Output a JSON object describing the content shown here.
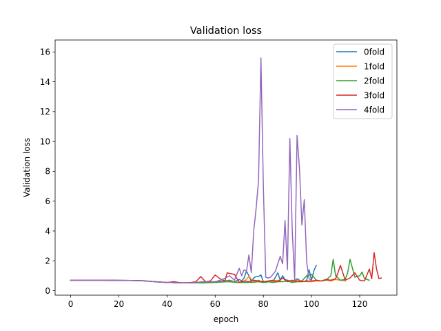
{
  "chart_data": {
    "type": "line",
    "title": "Validation loss",
    "xlabel": "epoch",
    "ylabel": "Validation loss",
    "xlim": [
      -6.45,
      135.45
    ],
    "ylim": [
      -0.3,
      16.8
    ],
    "xticks": [
      0,
      20,
      40,
      60,
      80,
      100,
      120
    ],
    "yticks": [
      0,
      2,
      4,
      6,
      8,
      10,
      12,
      14,
      16
    ],
    "grid": false,
    "legend_position": "top-right",
    "series": [
      {
        "name": "0fold",
        "color": "#1f77b4",
        "x": [
          0,
          5,
          10,
          15,
          20,
          25,
          30,
          33,
          36,
          40,
          43,
          46,
          50,
          53,
          56,
          60,
          62,
          64,
          66,
          68,
          70,
          71,
          72,
          73,
          74,
          75,
          76,
          77,
          78,
          79,
          80,
          81,
          82,
          83,
          84,
          85,
          86,
          87,
          88,
          89,
          90,
          91,
          92,
          93,
          94,
          95,
          96,
          97,
          98,
          99,
          100,
          101,
          102
        ],
        "y": [
          0.7,
          0.7,
          0.7,
          0.7,
          0.69,
          0.68,
          0.66,
          0.63,
          0.58,
          0.55,
          0.53,
          0.52,
          0.52,
          0.53,
          0.55,
          0.6,
          0.62,
          0.65,
          0.7,
          0.6,
          0.75,
          0.65,
          0.85,
          1.3,
          1.0,
          0.6,
          0.85,
          0.95,
          0.95,
          1.05,
          0.6,
          0.55,
          0.6,
          0.65,
          0.6,
          0.9,
          1.2,
          0.7,
          1.0,
          0.75,
          0.7,
          0.65,
          0.6,
          0.65,
          0.8,
          0.7,
          0.65,
          0.6,
          0.7,
          1.4,
          0.7,
          1.35,
          1.7
        ]
      },
      {
        "name": "1fold",
        "color": "#ff7f0e",
        "x": [
          0,
          5,
          10,
          15,
          20,
          25,
          30,
          35,
          40,
          45,
          50,
          55,
          60,
          63,
          66,
          69,
          72,
          74,
          76,
          78,
          80,
          82,
          84,
          86,
          88,
          90,
          92,
          94,
          96,
          98,
          100,
          102,
          104,
          106,
          108,
          110,
          112,
          114
        ],
        "y": [
          0.7,
          0.7,
          0.7,
          0.7,
          0.69,
          0.68,
          0.66,
          0.6,
          0.55,
          0.53,
          0.52,
          0.55,
          0.55,
          0.6,
          0.65,
          0.55,
          0.6,
          0.95,
          0.6,
          0.7,
          0.55,
          0.65,
          0.6,
          0.7,
          0.6,
          0.65,
          0.6,
          0.7,
          0.65,
          0.6,
          0.6,
          0.65,
          0.65,
          0.7,
          0.65,
          0.75,
          0.7,
          0.65
        ]
      },
      {
        "name": "2fold",
        "color": "#2ca02c",
        "x": [
          0,
          5,
          10,
          15,
          20,
          25,
          30,
          35,
          40,
          45,
          50,
          55,
          60,
          65,
          70,
          75,
          78,
          80,
          82,
          84,
          86,
          88,
          90,
          92,
          94,
          96,
          98,
          100,
          102,
          104,
          106,
          108,
          109,
          110,
          112,
          114,
          115,
          116,
          118,
          120,
          121,
          122,
          124
        ],
        "y": [
          0.7,
          0.7,
          0.7,
          0.7,
          0.69,
          0.68,
          0.66,
          0.6,
          0.55,
          0.53,
          0.52,
          0.52,
          0.55,
          0.6,
          0.55,
          0.55,
          0.6,
          0.55,
          0.6,
          0.55,
          0.6,
          0.6,
          0.65,
          0.55,
          0.6,
          0.65,
          1.0,
          1.1,
          0.7,
          0.65,
          0.7,
          1.0,
          2.1,
          1.0,
          0.7,
          0.75,
          1.2,
          2.1,
          0.9,
          1.0,
          1.25,
          0.8,
          0.7
        ]
      },
      {
        "name": "3fold",
        "color": "#d62728",
        "x": [
          0,
          5,
          10,
          15,
          20,
          25,
          30,
          35,
          40,
          43,
          46,
          50,
          52,
          54,
          56,
          58,
          60,
          62,
          64,
          65,
          66,
          68,
          70,
          72,
          74,
          76,
          78,
          80,
          82,
          84,
          86,
          88,
          90,
          92,
          94,
          96,
          98,
          100,
          102,
          104,
          106,
          108,
          110,
          111,
          112,
          114,
          116,
          118,
          120,
          122,
          124,
          125,
          126,
          127,
          128,
          129
        ],
        "y": [
          0.7,
          0.7,
          0.7,
          0.7,
          0.69,
          0.68,
          0.67,
          0.6,
          0.55,
          0.6,
          0.52,
          0.55,
          0.6,
          0.95,
          0.6,
          0.65,
          1.05,
          0.8,
          0.65,
          1.2,
          1.15,
          1.1,
          0.55,
          0.65,
          0.6,
          0.7,
          0.65,
          0.6,
          0.65,
          0.7,
          0.6,
          0.85,
          0.6,
          0.7,
          0.6,
          0.6,
          0.65,
          0.65,
          0.7,
          0.65,
          0.75,
          0.7,
          0.8,
          1.2,
          1.7,
          0.7,
          0.85,
          1.2,
          0.7,
          0.65,
          1.45,
          0.8,
          2.55,
          1.45,
          0.8,
          0.85
        ]
      },
      {
        "name": "4fold",
        "color": "#9467bd",
        "x": [
          0,
          5,
          10,
          15,
          20,
          25,
          30,
          35,
          40,
          45,
          50,
          55,
          60,
          63,
          66,
          68,
          70,
          71,
          72,
          73,
          74,
          75,
          76,
          77,
          78,
          79,
          80,
          81,
          82,
          83,
          84,
          85,
          86,
          87,
          88,
          89,
          90,
          91,
          92,
          93,
          94,
          95,
          96,
          97,
          98,
          99,
          100
        ],
        "y": [
          0.7,
          0.7,
          0.7,
          0.7,
          0.69,
          0.68,
          0.66,
          0.6,
          0.55,
          0.53,
          0.52,
          0.6,
          0.6,
          0.75,
          1.0,
          0.7,
          1.5,
          1.0,
          1.4,
          1.3,
          2.4,
          1.2,
          4.0,
          5.5,
          7.4,
          15.6,
          7.0,
          0.9,
          0.85,
          0.9,
          1.1,
          1.3,
          1.8,
          2.3,
          1.8,
          4.7,
          1.4,
          10.2,
          4.0,
          0.7,
          10.4,
          8.2,
          4.4,
          6.1,
          1.9,
          0.8,
          0.7
        ]
      }
    ]
  }
}
